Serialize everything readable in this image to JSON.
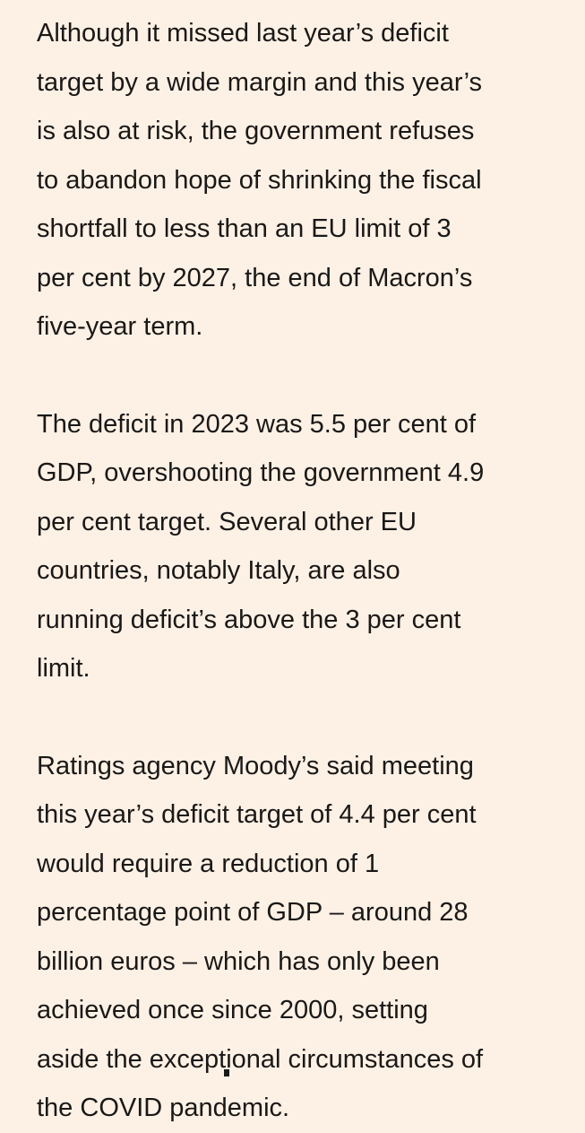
{
  "article": {
    "paragraphs": [
      {
        "lines": [
          "Although it missed last year’s deficit",
          "target by a wide margin and this year’s",
          "is also at risk, the government refuses",
          "to abandon hope of shrinking the fiscal",
          "shortfall to less than an EU limit of 3",
          "per cent by 2027, the end of Macron’s",
          "five-year term."
        ]
      },
      {
        "lines": [
          "The deficit in 2023 was 5.5 per cent of",
          "GDP, overshooting the government 4.9",
          "per cent target. Several other EU",
          "countries, notably Italy, are also",
          "running deficit’s above the 3 per cent",
          "limit."
        ]
      },
      {
        "lines": [
          "Ratings agency Moody’s said meeting",
          "this year’s deficit target of 4.4 per cent",
          "would require a reduction of 1",
          "percentage point of GDP – around 28",
          "billion euros – which has only been",
          "achieved once since 2000, setting",
          "aside the exceptional circumstances of",
          "the COVID pandemic."
        ]
      }
    ]
  }
}
